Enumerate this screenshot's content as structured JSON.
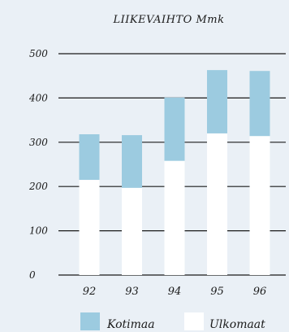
{
  "chart_data": {
    "type": "bar",
    "stacked": true,
    "title": "LIIKEVAIHTO Mmk",
    "xlabel": "",
    "ylabel": "",
    "categories": [
      "92",
      "93",
      "94",
      "95",
      "96"
    ],
    "series": [
      {
        "name": "Ulkomaat",
        "values": [
          215,
          197,
          258,
          320,
          314
        ],
        "color": "#ffffff"
      },
      {
        "name": "Kotimaa",
        "values": [
          103,
          119,
          143,
          143,
          147
        ],
        "color": "#9ccbe0"
      }
    ],
    "ylim": [
      0,
      500
    ],
    "yticks": [
      0,
      100,
      200,
      300,
      400,
      500
    ],
    "ytick_labels": [
      "0",
      "100",
      "200",
      "300",
      "400",
      "500"
    ],
    "grid": true,
    "legend_position": "bottom",
    "legend": [
      {
        "label": "Kotimaa",
        "color": "#9ccbe0"
      },
      {
        "label": "Ulkomaat",
        "color": "#ffffff"
      }
    ],
    "background_color": "#eaf0f6",
    "gridline_color": "#1a1a1a"
  }
}
